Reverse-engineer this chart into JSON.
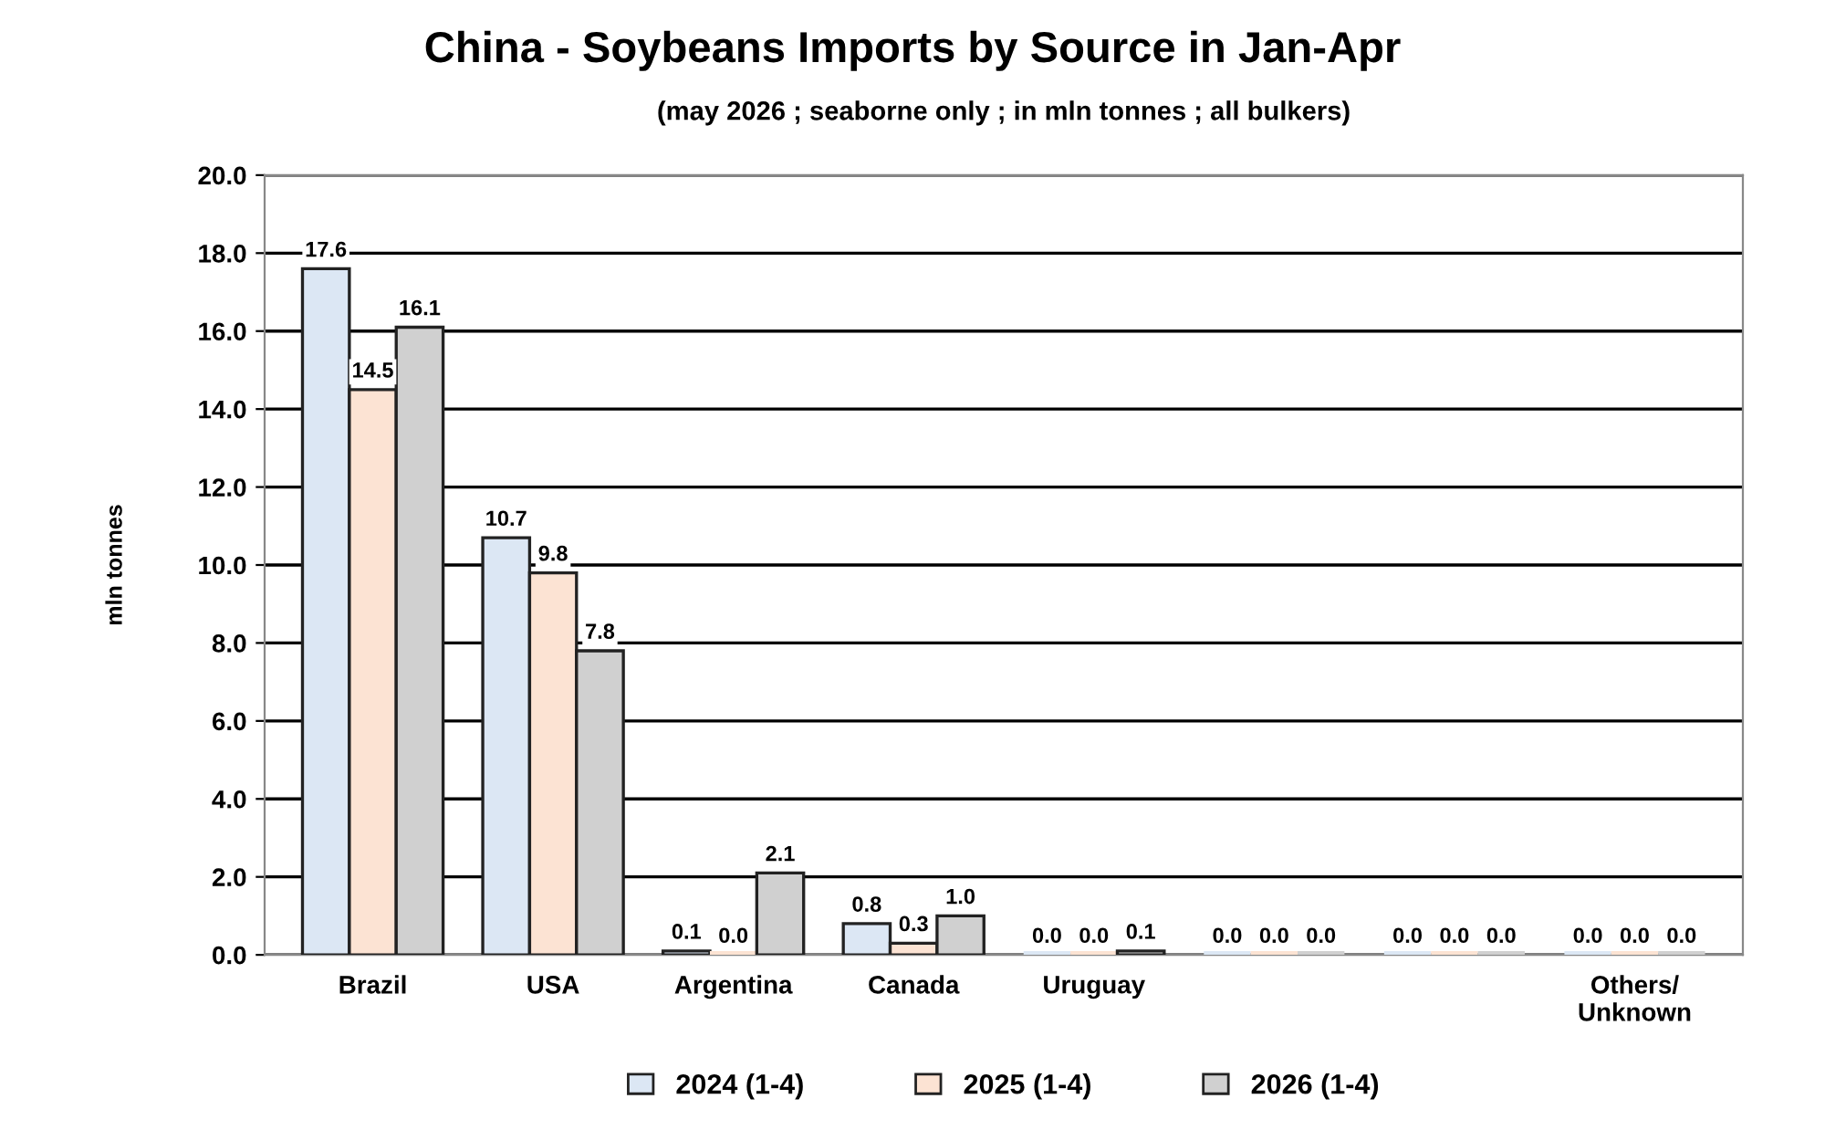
{
  "chart_data": {
    "type": "bar",
    "title": "China - Soybeans Imports by Source in Jan-Apr",
    "subtitle": "(may 2026 ; seaborne only ; in mln tonnes ; all bulkers)",
    "ylabel": "mln tonnes",
    "categories": [
      "Brazil",
      "USA",
      "Argentina",
      "Canada",
      "Uruguay",
      null,
      null,
      "Others/\nUnknown"
    ],
    "series": [
      {
        "name": "2024 (1-4)",
        "color": "#dce7f4",
        "values": [
          17.6,
          10.7,
          0.1,
          0.8,
          0.0,
          0.0,
          0.0,
          0.0
        ],
        "value_labels": [
          "17.6",
          "10.7",
          "0.1",
          "0.8",
          "0.0",
          "0.0",
          "0.0",
          "0.0"
        ]
      },
      {
        "name": "2025 (1-4)",
        "color": "#fce3d3",
        "values": [
          14.5,
          9.8,
          0.0,
          0.3,
          0.0,
          0.0,
          0.0,
          0.0
        ],
        "value_labels": [
          "14.5",
          "9.8",
          "0.0",
          "0.3",
          "0.0",
          "0.0",
          "0.0",
          "0.0"
        ]
      },
      {
        "name": "2026 (1-4)",
        "color": "#d0d0d0",
        "values": [
          16.1,
          7.8,
          2.1,
          1.0,
          0.1,
          0.0,
          0.0,
          0.0
        ],
        "value_labels": [
          "16.1",
          "7.8",
          "2.1",
          "1.0",
          "0.1",
          "0.0",
          "0.0",
          "0.0"
        ]
      }
    ],
    "ylim": [
      0,
      20
    ],
    "yticks": [
      {
        "value": 0,
        "label": "0.0"
      },
      {
        "value": 2,
        "label": "2.0"
      },
      {
        "value": 4,
        "label": "4.0"
      },
      {
        "value": 6,
        "label": "6.0"
      },
      {
        "value": 8,
        "label": "8.0"
      },
      {
        "value": 10,
        "label": "10.0"
      },
      {
        "value": 12,
        "label": "12.0"
      },
      {
        "value": 14,
        "label": "14.0"
      },
      {
        "value": 16,
        "label": "16.0"
      },
      {
        "value": 18,
        "label": "18.0"
      },
      {
        "value": 20,
        "label": "20.0"
      }
    ],
    "grid": "y",
    "legend": "bottom"
  }
}
